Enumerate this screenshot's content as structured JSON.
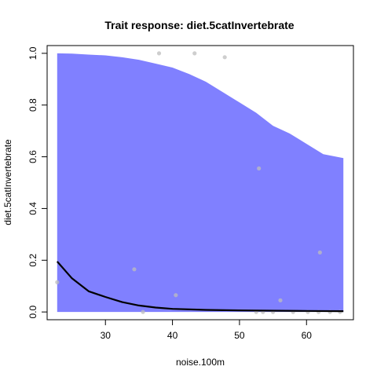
{
  "chart_data": {
    "type": "line",
    "title": "Trait response: diet.5catInvertebrate",
    "xlabel": "noise.100m",
    "ylabel": "diet.5catInvertebrate",
    "xlim": [
      21.3,
      67.0
    ],
    "ylim": [
      -0.03,
      1.03
    ],
    "xticks": [
      30,
      40,
      50,
      60
    ],
    "yticks": [
      0.0,
      0.2,
      0.4,
      0.6,
      0.8,
      1.0
    ],
    "ytick_labels": [
      "0.0",
      "0.2",
      "0.4",
      "0.6",
      "0.8",
      "1.0"
    ],
    "grid": false,
    "colors": {
      "band": "#8080ff",
      "line": "#000000",
      "points": "#bebebe"
    },
    "series": [
      {
        "kind": "fitted-line",
        "x": [
          22.8,
          25.0,
          27.5,
          30.0,
          32.5,
          35.0,
          37.5,
          40.0,
          45.0,
          50.0,
          55.0,
          60.0,
          65.5
        ],
        "y": [
          0.195,
          0.13,
          0.08,
          0.058,
          0.038,
          0.025,
          0.017,
          0.012,
          0.008,
          0.006,
          0.005,
          0.004,
          0.003
        ]
      },
      {
        "kind": "confidence-band",
        "x": [
          22.8,
          25.0,
          27.5,
          30.0,
          32.5,
          35.0,
          37.5,
          40.0,
          42.5,
          45.0,
          47.5,
          50.0,
          52.5,
          55.0,
          57.5,
          60.0,
          62.5,
          65.5
        ],
        "upper": [
          1.0,
          0.999,
          0.995,
          0.992,
          0.985,
          0.975,
          0.96,
          0.945,
          0.92,
          0.89,
          0.85,
          0.81,
          0.77,
          0.72,
          0.69,
          0.65,
          0.61,
          0.595
        ],
        "lower": [
          0.0,
          0.0,
          0.0,
          0.0,
          0.0,
          0.0,
          0.0,
          0.0,
          0.0,
          0.0,
          0.0,
          0.0,
          0.0,
          0.0,
          0.0,
          0.0,
          0.0,
          0.0
        ]
      },
      {
        "kind": "observations",
        "x": [
          22.8,
          34.3,
          35.6,
          38.0,
          40.5,
          43.3,
          47.8,
          52.9,
          53.5,
          56.1,
          62.0,
          52.5,
          55.0,
          58.0,
          60.2,
          61.8,
          63.5,
          65.0
        ],
        "y": [
          0.115,
          0.165,
          0.0,
          1.0,
          0.065,
          1.0,
          0.985,
          0.555,
          0.0,
          0.045,
          0.23,
          0.0,
          0.0,
          0.0,
          0.0,
          0.0,
          0.0,
          0.0
        ]
      }
    ]
  }
}
